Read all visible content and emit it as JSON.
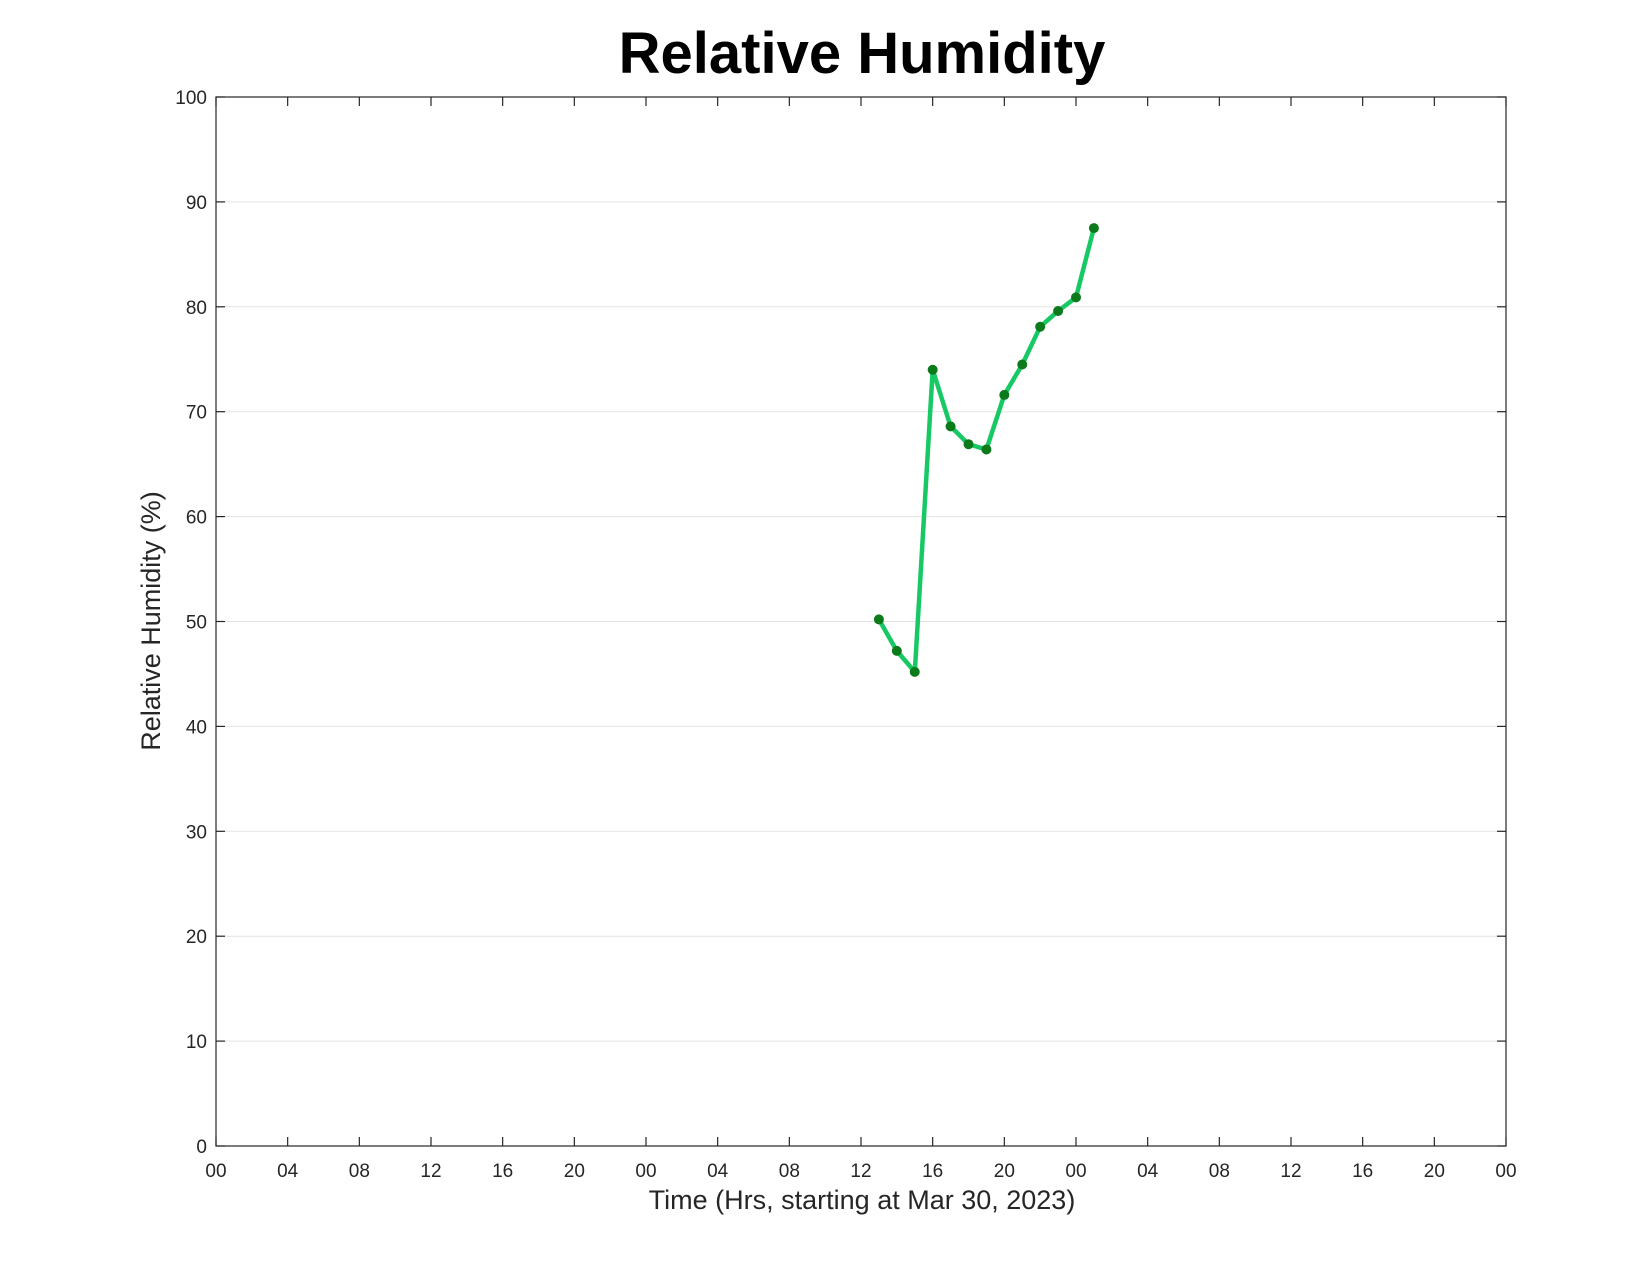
{
  "chart_data": {
    "type": "line",
    "title": "Relative Humidity",
    "xlabel": "Time (Hrs, starting at Mar 30, 2023)",
    "ylabel": "Relative Humidity (%)",
    "ylim": [
      0,
      100
    ],
    "xlim": [
      "2023-03-30 00:00",
      "2023-04-02 00:00"
    ],
    "y_ticks": [
      0,
      10,
      20,
      30,
      40,
      50,
      60,
      70,
      80,
      90,
      100
    ],
    "x_ticks": [
      {
        "t": "2023-03-30 00:00",
        "label": "00"
      },
      {
        "t": "2023-03-30 04:00",
        "label": "04"
      },
      {
        "t": "2023-03-30 08:00",
        "label": "08"
      },
      {
        "t": "2023-03-30 12:00",
        "label": "12"
      },
      {
        "t": "2023-03-30 16:00",
        "label": "16"
      },
      {
        "t": "2023-03-30 20:00",
        "label": "20"
      },
      {
        "t": "2023-03-31 00:00",
        "label": "00"
      },
      {
        "t": "2023-03-31 04:00",
        "label": "04"
      },
      {
        "t": "2023-03-31 08:00",
        "label": "08"
      },
      {
        "t": "2023-03-31 12:00",
        "label": "12"
      },
      {
        "t": "2023-03-31 16:00",
        "label": "16"
      },
      {
        "t": "2023-03-31 20:00",
        "label": "20"
      },
      {
        "t": "2023-04-01 00:00",
        "label": "00"
      },
      {
        "t": "2023-04-01 04:00",
        "label": "04"
      },
      {
        "t": "2023-04-01 08:00",
        "label": "08"
      },
      {
        "t": "2023-04-01 12:00",
        "label": "12"
      },
      {
        "t": "2023-04-01 16:00",
        "label": "16"
      },
      {
        "t": "2023-04-01 20:00",
        "label": "20"
      },
      {
        "t": "2023-04-02 00:00",
        "label": "00"
      }
    ],
    "grid": {
      "y": true,
      "x": false
    },
    "series": [
      {
        "line_color": "#17c964",
        "marker_color": "#0a7a1a",
        "x": [
          "2023-03-31 13:00",
          "2023-03-31 14:00",
          "2023-03-31 15:00",
          "2023-03-31 16:00",
          "2023-03-31 17:00",
          "2023-03-31 18:00",
          "2023-03-31 19:00",
          "2023-03-31 20:00",
          "2023-03-31 21:00",
          "2023-03-31 22:00",
          "2023-03-31 23:00",
          "2023-04-01 00:00",
          "2023-04-01 01:00"
        ],
        "y": [
          50.2,
          47.2,
          45.2,
          74.0,
          68.6,
          66.9,
          66.4,
          71.6,
          74.5,
          78.1,
          79.6,
          80.9,
          87.5
        ]
      }
    ]
  }
}
